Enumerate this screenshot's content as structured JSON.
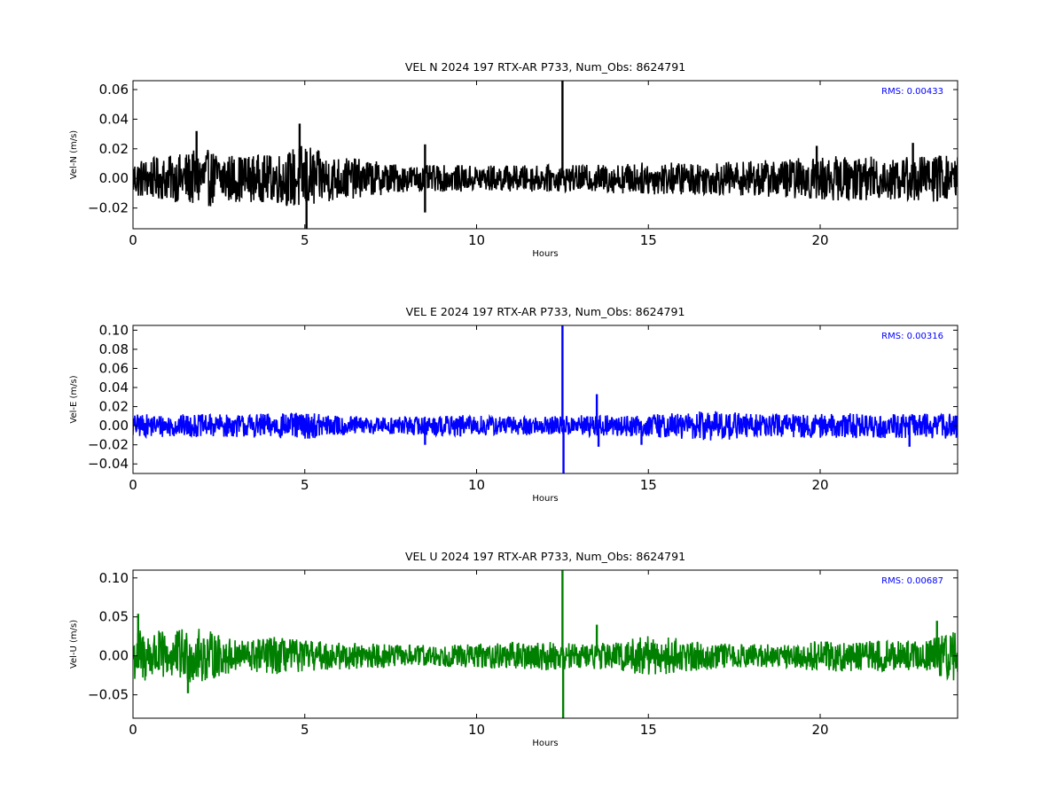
{
  "chart_data": [
    {
      "type": "line",
      "title": "VEL N 2024 197 RTX-AR  P733, Num_Obs: 8624791",
      "xlabel": "Hours",
      "ylabel": "Vel-N (m/s)",
      "xlim": [
        0,
        24
      ],
      "ylim": [
        -0.034,
        0.066
      ],
      "xticks": [
        "0",
        "5",
        "10",
        "15",
        "20"
      ],
      "yticks": [
        "−0.02",
        "0.00",
        "0.02",
        "0.04",
        "0.06"
      ],
      "ytick_values": [
        -0.02,
        0.0,
        0.02,
        0.04,
        0.06
      ],
      "color": "#000000",
      "rms_label": "RMS:  0.00433",
      "rms_color": "#0000ff",
      "series": [
        {
          "values": [
            0.0,
            0.0,
            0.0,
            0.0
          ],
          "envelope_x": [
            0,
            1,
            2,
            3,
            4,
            4.5,
            5,
            5.5,
            6,
            7,
            8,
            9,
            10,
            11,
            12,
            13,
            14,
            15,
            16,
            17,
            18,
            19,
            20,
            21,
            22,
            23,
            24
          ],
          "envelope_half_width": [
            0.013,
            0.015,
            0.02,
            0.016,
            0.016,
            0.019,
            0.024,
            0.017,
            0.015,
            0.012,
            0.009,
            0.009,
            0.009,
            0.009,
            0.009,
            0.009,
            0.01,
            0.011,
            0.011,
            0.011,
            0.012,
            0.013,
            0.015,
            0.015,
            0.015,
            0.016,
            0.016
          ],
          "spikes": [
            {
              "x": 1.85,
              "y": 0.032
            },
            {
              "x": 4.85,
              "y": 0.037
            },
            {
              "x": 5.05,
              "y": -0.034
            },
            {
              "x": 8.5,
              "y": 0.023
            },
            {
              "x": 8.5,
              "y": -0.023
            },
            {
              "x": 12.5,
              "y": 0.066
            },
            {
              "x": 19.9,
              "y": 0.022
            },
            {
              "x": 22.7,
              "y": 0.024
            }
          ]
        }
      ]
    },
    {
      "type": "line",
      "title": "VEL E 2024 197 RTX-AR  P733, Num_Obs: 8624791",
      "xlabel": "Hours",
      "ylabel": "Vel-E (m/s)",
      "xlim": [
        0,
        24
      ],
      "ylim": [
        -0.05,
        0.105
      ],
      "xticks": [
        "0",
        "5",
        "10",
        "15",
        "20"
      ],
      "yticks": [
        "−0.04",
        "−0.02",
        "0.00",
        "0.02",
        "0.04",
        "0.06",
        "0.08",
        "0.10"
      ],
      "ytick_values": [
        -0.04,
        -0.02,
        0.0,
        0.02,
        0.04,
        0.06,
        0.08,
        0.1
      ],
      "color": "#0000ff",
      "rms_label": "RMS:  0.00316",
      "rms_color": "#0000ff",
      "series": [
        {
          "values": [
            0.0,
            0.0,
            0.0,
            0.0
          ],
          "envelope_x": [
            0,
            1,
            2,
            3,
            4,
            5,
            6,
            7,
            8,
            9,
            10,
            11,
            12,
            13,
            14,
            15,
            16,
            17,
            18,
            19,
            20,
            21,
            22,
            23,
            24
          ],
          "envelope_half_width": [
            0.012,
            0.012,
            0.012,
            0.012,
            0.013,
            0.014,
            0.011,
            0.009,
            0.01,
            0.011,
            0.011,
            0.01,
            0.01,
            0.011,
            0.011,
            0.012,
            0.014,
            0.016,
            0.013,
            0.012,
            0.013,
            0.013,
            0.013,
            0.013,
            0.014
          ],
          "spikes": [
            {
              "x": 8.5,
              "y": -0.02
            },
            {
              "x": 12.5,
              "y": 0.105
            },
            {
              "x": 12.53,
              "y": -0.05
            },
            {
              "x": 13.5,
              "y": 0.033
            },
            {
              "x": 13.55,
              "y": -0.022
            },
            {
              "x": 14.8,
              "y": -0.02
            },
            {
              "x": 22.6,
              "y": -0.022
            }
          ]
        }
      ]
    },
    {
      "type": "line",
      "title": "VEL U 2024 197 RTX-AR  P733, Num_Obs: 8624791",
      "xlabel": "Hours",
      "ylabel": "Vel-U (m/s)",
      "xlim": [
        0,
        24
      ],
      "ylim": [
        -0.08,
        0.11
      ],
      "xticks": [
        "0",
        "5",
        "10",
        "15",
        "20"
      ],
      "yticks": [
        "−0.05",
        "0.00",
        "0.05",
        "0.10"
      ],
      "ytick_values": [
        -0.05,
        0.0,
        0.05,
        0.1
      ],
      "color": "#008000",
      "rms_label": "RMS:  0.00687",
      "rms_color": "#0000ff",
      "series": [
        {
          "values": [
            0.0,
            0.0,
            0.0,
            0.0
          ],
          "envelope_x": [
            0,
            0.5,
            1,
            1.5,
            2,
            2.5,
            3,
            4,
            5,
            6,
            7,
            8,
            9,
            10,
            11,
            12,
            13,
            14,
            15,
            16,
            17,
            18,
            19,
            20,
            21,
            22,
            23,
            24
          ],
          "envelope_half_width": [
            0.035,
            0.035,
            0.03,
            0.036,
            0.035,
            0.028,
            0.02,
            0.025,
            0.02,
            0.018,
            0.016,
            0.014,
            0.014,
            0.016,
            0.017,
            0.019,
            0.016,
            0.018,
            0.026,
            0.022,
            0.017,
            0.015,
            0.015,
            0.02,
            0.02,
            0.02,
            0.02,
            0.033
          ],
          "spikes": [
            {
              "x": 0.15,
              "y": 0.054
            },
            {
              "x": 1.6,
              "y": -0.048
            },
            {
              "x": 12.5,
              "y": 0.11
            },
            {
              "x": 12.52,
              "y": -0.08
            },
            {
              "x": 13.5,
              "y": 0.04
            },
            {
              "x": 23.4,
              "y": 0.045
            }
          ]
        }
      ]
    }
  ]
}
